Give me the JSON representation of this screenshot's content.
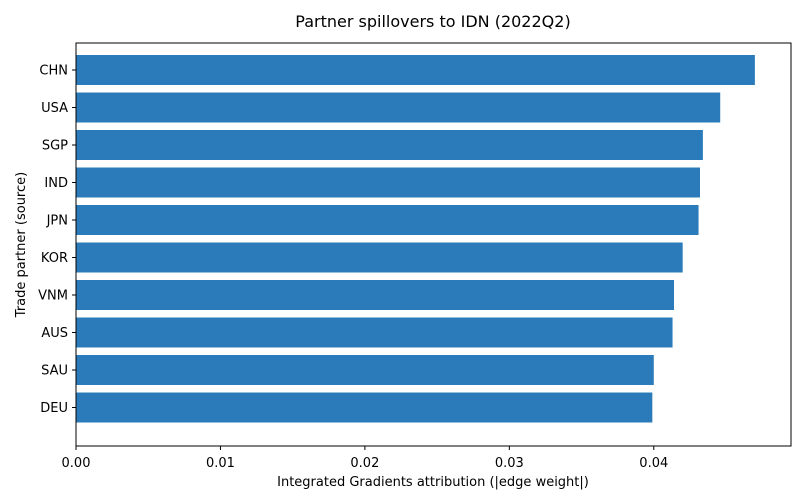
{
  "chart_data": {
    "type": "bar",
    "orientation": "horizontal",
    "title": "Partner spillovers to IDN (2022Q2)",
    "xlabel": "Integrated Gradients attribution (|edge weight|)",
    "ylabel": "Trade partner (source)",
    "categories": [
      "CHN",
      "USA",
      "SGP",
      "IND",
      "JPN",
      "KOR",
      "VNM",
      "AUS",
      "SAU",
      "DEU"
    ],
    "values": [
      0.047,
      0.0446,
      0.0434,
      0.0432,
      0.0431,
      0.042,
      0.0414,
      0.0413,
      0.04,
      0.0399
    ],
    "xlim": [
      0,
      0.0495
    ],
    "xticks": [
      0.0,
      0.01,
      0.02,
      0.03,
      0.04
    ],
    "xtick_labels": [
      "0.00",
      "0.01",
      "0.02",
      "0.03",
      "0.04"
    ],
    "bar_color": "#2b7bba",
    "grid": false,
    "legend": false
  }
}
